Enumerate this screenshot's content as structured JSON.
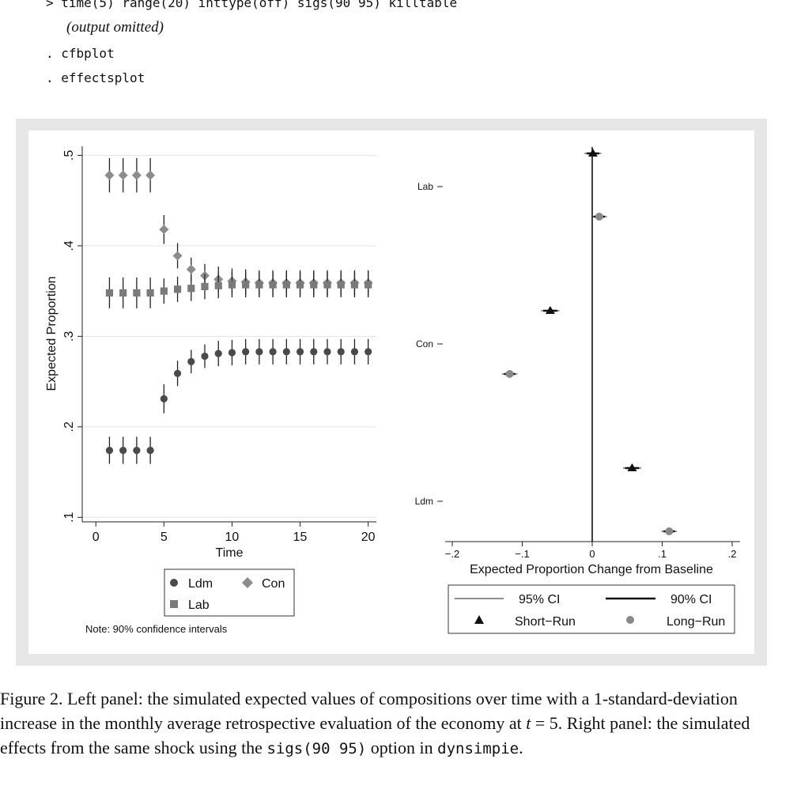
{
  "code": {
    "line1": "> time(5) range(20) inttype(off) sigs(90 95) killtable",
    "line2": "(output omitted)",
    "line3": ". cfbplot",
    "line4": ". effectsplot"
  },
  "left_panel": {
    "ylabel": "Expected Proportion",
    "xlabel": "Time",
    "note": "Note: 90% confidence intervals",
    "legend": {
      "ldm": "Ldm",
      "con": "Con",
      "lab": "Lab"
    }
  },
  "right_panel": {
    "xlabel": "Expected Proportion Change from Baseline",
    "legend": {
      "ci95": "95% CI",
      "ci90": "90% CI",
      "short": "Short−Run",
      "long": "Long−Run"
    }
  },
  "caption": {
    "p1": "Figure 2.  Left panel: the simulated expected values of compositions over time with a 1-standard-deviation increase in the monthly average retrospective evaluation of the economy at ",
    "tvar": "t",
    "p2": " = 5.  Right panel: the simulated effects from the same shock using the ",
    "code1": "sigs(90 95)",
    "p3": " option in ",
    "code2": "dynsimpie",
    "p4": "."
  },
  "chart_data": [
    {
      "type": "scatter",
      "title": "",
      "xlabel": "Time",
      "ylabel": "Expected Proportion",
      "xlim": [
        -1,
        20.6
      ],
      "ylim": [
        0.095,
        0.51
      ],
      "x_ticks": [
        0,
        5,
        10,
        15,
        20
      ],
      "x_tick_labels": [
        "0",
        "5",
        "10",
        "15",
        "20"
      ],
      "y_ticks": [
        0.1,
        0.2,
        0.3,
        0.4,
        0.5
      ],
      "y_tick_labels": [
        ".1",
        ".2",
        ".3",
        ".4",
        ".5"
      ],
      "grid": true,
      "legend_position": "bottom",
      "x": [
        1,
        2,
        3,
        4,
        5,
        6,
        7,
        8,
        9,
        10,
        11,
        12,
        13,
        14,
        15,
        16,
        17,
        18,
        19,
        20
      ],
      "series": [
        {
          "name": "Ldm",
          "marker": "circle",
          "color": "#4a4a4a",
          "values": [
            0.174,
            0.174,
            0.174,
            0.174,
            0.231,
            0.259,
            0.272,
            0.278,
            0.281,
            0.282,
            0.283,
            0.283,
            0.283,
            0.283,
            0.283,
            0.283,
            0.283,
            0.283,
            0.283,
            0.283
          ],
          "ci_half": [
            0.015,
            0.015,
            0.015,
            0.015,
            0.016,
            0.014,
            0.013,
            0.013,
            0.014,
            0.014,
            0.014,
            0.014,
            0.014,
            0.014,
            0.014,
            0.014,
            0.014,
            0.014,
            0.014,
            0.014
          ]
        },
        {
          "name": "Con",
          "marker": "diamond",
          "color": "#8c8c8c",
          "values": [
            0.478,
            0.478,
            0.478,
            0.478,
            0.418,
            0.389,
            0.374,
            0.367,
            0.363,
            0.361,
            0.36,
            0.359,
            0.359,
            0.359,
            0.359,
            0.359,
            0.359,
            0.359,
            0.359,
            0.359
          ],
          "ci_half": [
            0.019,
            0.019,
            0.019,
            0.019,
            0.016,
            0.014,
            0.013,
            0.013,
            0.014,
            0.014,
            0.014,
            0.014,
            0.014,
            0.014,
            0.014,
            0.014,
            0.014,
            0.014,
            0.014,
            0.014
          ]
        },
        {
          "name": "Lab",
          "marker": "square",
          "color": "#7a7a7a",
          "values": [
            0.348,
            0.348,
            0.348,
            0.348,
            0.35,
            0.352,
            0.353,
            0.355,
            0.356,
            0.357,
            0.357,
            0.357,
            0.357,
            0.357,
            0.357,
            0.357,
            0.357,
            0.357,
            0.357,
            0.357
          ],
          "ci_half": [
            0.017,
            0.017,
            0.017,
            0.017,
            0.014,
            0.014,
            0.014,
            0.014,
            0.014,
            0.014,
            0.014,
            0.014,
            0.014,
            0.014,
            0.014,
            0.014,
            0.014,
            0.014,
            0.014,
            0.014
          ]
        }
      ]
    },
    {
      "type": "scatter",
      "title": "",
      "xlabel": "Expected Proportion Change from Baseline",
      "ylabel": "",
      "xlim": [
        -0.2,
        0.2
      ],
      "x_ticks": [
        -0.2,
        -0.1,
        0,
        0.1,
        0.2
      ],
      "x_tick_labels": [
        "−.2",
        "−.1",
        "0",
        ".1",
        ".2"
      ],
      "categories": [
        "Lab",
        "Con",
        "Ldm"
      ],
      "grid": false,
      "legend_position": "bottom",
      "series": [
        {
          "name": "Short−Run",
          "marker": "triangle",
          "values": [
            0.001,
            -0.06,
            0.057
          ],
          "ci90": [
            [
              -0.008,
              0.01
            ],
            [
              -0.07,
              -0.05
            ],
            [
              0.047,
              0.067
            ]
          ],
          "ci95": [
            [
              -0.011,
              0.013
            ],
            [
              -0.073,
              -0.047
            ],
            [
              0.044,
              0.07
            ]
          ]
        },
        {
          "name": "Long−Run",
          "marker": "circle",
          "values": [
            0.01,
            -0.118,
            0.11
          ],
          "ci90": [
            [
              0.002,
              0.018
            ],
            [
              -0.126,
              -0.11
            ],
            [
              0.102,
              0.118
            ]
          ],
          "ci95": [
            [
              -0.001,
              0.021
            ],
            [
              -0.129,
              -0.107
            ],
            [
              0.099,
              0.121
            ]
          ]
        }
      ]
    }
  ]
}
